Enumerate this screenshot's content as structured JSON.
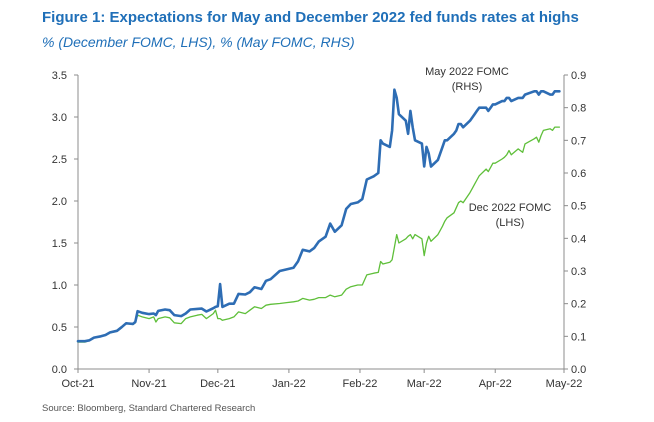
{
  "header": {
    "title": "Figure 1: Expectations for May and December 2022 fed funds rates at highs",
    "subtitle": "% (December FOMC, LHS), % (May FOMC, RHS)"
  },
  "footer": {
    "source": "Source: Bloomberg, Standard Chartered Research"
  },
  "chart_data": {
    "type": "line",
    "title": "Figure 1: Expectations for May and December 2022 fed funds rates at highs",
    "subtitle": "% (December FOMC, LHS), % (May FOMC, RHS)",
    "x_type": "date",
    "x_ticks": [
      "Oct-21",
      "Nov-21",
      "Dec-21",
      "Jan-22",
      "Feb-22",
      "Mar-22",
      "Apr-22",
      "May-22"
    ],
    "x_tick_dates": [
      "2021-10-01",
      "2021-11-01",
      "2021-12-01",
      "2022-01-01",
      "2022-02-01",
      "2022-03-01",
      "2022-04-01",
      "2022-05-01"
    ],
    "xlim": [
      "2021-10-01",
      "2022-05-01"
    ],
    "y_left": {
      "label": "",
      "ylim": [
        0,
        3.5
      ],
      "ticks": [
        "0.0",
        "0.5",
        "1.0",
        "1.5",
        "2.0",
        "2.5",
        "3.0",
        "3.5"
      ]
    },
    "y_right": {
      "label": "",
      "ylim": [
        0,
        0.9
      ],
      "ticks": [
        "0.0",
        "0.1",
        "0.2",
        "0.3",
        "0.4",
        "0.5",
        "0.6",
        "0.7",
        "0.8",
        "0.9"
      ]
    },
    "grid": false,
    "legend": "inline labels",
    "series": [
      {
        "name": "May 2022 FOMC (RHS)",
        "axis": "right",
        "color": "#2e6db4",
        "label_lines": [
          "May 2022 FOMC",
          "(RHS)"
        ],
        "points": [
          [
            "2021-10-01",
            0.085
          ],
          [
            "2021-10-04",
            0.085
          ],
          [
            "2021-10-06",
            0.088
          ],
          [
            "2021-10-08",
            0.096
          ],
          [
            "2021-10-11",
            0.1
          ],
          [
            "2021-10-13",
            0.104
          ],
          [
            "2021-10-15",
            0.112
          ],
          [
            "2021-10-18",
            0.117
          ],
          [
            "2021-10-20",
            0.128
          ],
          [
            "2021-10-22",
            0.14
          ],
          [
            "2021-10-25",
            0.138
          ],
          [
            "2021-10-26",
            0.144
          ],
          [
            "2021-10-27",
            0.177
          ],
          [
            "2021-10-29",
            0.172
          ],
          [
            "2021-11-01",
            0.168
          ],
          [
            "2021-11-03",
            0.17
          ],
          [
            "2021-11-04",
            0.165
          ],
          [
            "2021-11-05",
            0.178
          ],
          [
            "2021-11-08",
            0.182
          ],
          [
            "2021-11-10",
            0.18
          ],
          [
            "2021-11-12",
            0.165
          ],
          [
            "2021-11-15",
            0.162
          ],
          [
            "2021-11-17",
            0.17
          ],
          [
            "2021-11-19",
            0.182
          ],
          [
            "2021-11-22",
            0.184
          ],
          [
            "2021-11-24",
            0.185
          ],
          [
            "2021-11-26",
            0.176
          ],
          [
            "2021-11-29",
            0.186
          ],
          [
            "2021-11-30",
            0.19
          ],
          [
            "2021-12-01",
            0.192
          ],
          [
            "2021-12-02",
            0.26
          ],
          [
            "2021-12-03",
            0.19
          ],
          [
            "2021-12-06",
            0.2
          ],
          [
            "2021-12-08",
            0.2
          ],
          [
            "2021-12-10",
            0.23
          ],
          [
            "2021-12-13",
            0.228
          ],
          [
            "2021-12-15",
            0.235
          ],
          [
            "2021-12-17",
            0.25
          ],
          [
            "2021-12-20",
            0.245
          ],
          [
            "2021-12-22",
            0.27
          ],
          [
            "2021-12-24",
            0.275
          ],
          [
            "2021-12-28",
            0.3
          ],
          [
            "2021-12-31",
            0.305
          ],
          [
            "2022-01-03",
            0.31
          ],
          [
            "2022-01-05",
            0.33
          ],
          [
            "2022-01-07",
            0.365
          ],
          [
            "2022-01-10",
            0.36
          ],
          [
            "2022-01-12",
            0.37
          ],
          [
            "2022-01-14",
            0.39
          ],
          [
            "2022-01-17",
            0.405
          ],
          [
            "2022-01-19",
            0.445
          ],
          [
            "2022-01-21",
            0.42
          ],
          [
            "2022-01-24",
            0.44
          ],
          [
            "2022-01-26",
            0.49
          ],
          [
            "2022-01-28",
            0.505
          ],
          [
            "2022-01-31",
            0.51
          ],
          [
            "2022-02-02",
            0.52
          ],
          [
            "2022-02-04",
            0.58
          ],
          [
            "2022-02-07",
            0.59
          ],
          [
            "2022-02-09",
            0.6
          ],
          [
            "2022-02-10",
            0.7
          ],
          [
            "2022-02-11",
            0.69
          ],
          [
            "2022-02-14",
            0.68
          ],
          [
            "2022-02-15",
            0.73
          ],
          [
            "2022-02-16",
            0.855
          ],
          [
            "2022-02-17",
            0.83
          ],
          [
            "2022-02-18",
            0.78
          ],
          [
            "2022-02-21",
            0.76
          ],
          [
            "2022-02-22",
            0.72
          ],
          [
            "2022-02-23",
            0.79
          ],
          [
            "2022-02-24",
            0.74
          ],
          [
            "2022-02-25",
            0.7
          ],
          [
            "2022-02-28",
            0.69
          ],
          [
            "2022-03-01",
            0.62
          ],
          [
            "2022-03-02",
            0.68
          ],
          [
            "2022-03-03",
            0.66
          ],
          [
            "2022-03-04",
            0.62
          ],
          [
            "2022-03-07",
            0.64
          ],
          [
            "2022-03-08",
            0.66
          ],
          [
            "2022-03-09",
            0.68
          ],
          [
            "2022-03-10",
            0.7
          ],
          [
            "2022-03-11",
            0.7
          ],
          [
            "2022-03-14",
            0.72
          ],
          [
            "2022-03-15",
            0.73
          ],
          [
            "2022-03-16",
            0.75
          ],
          [
            "2022-03-17",
            0.75
          ],
          [
            "2022-03-18",
            0.74
          ],
          [
            "2022-03-21",
            0.76
          ],
          [
            "2022-03-22",
            0.77
          ],
          [
            "2022-03-23",
            0.78
          ],
          [
            "2022-03-24",
            0.79
          ],
          [
            "2022-03-25",
            0.8
          ],
          [
            "2022-03-28",
            0.8
          ],
          [
            "2022-03-29",
            0.79
          ],
          [
            "2022-03-30",
            0.8
          ],
          [
            "2022-03-31",
            0.81
          ],
          [
            "2022-04-01",
            0.81
          ],
          [
            "2022-04-04",
            0.82
          ],
          [
            "2022-04-05",
            0.82
          ],
          [
            "2022-04-06",
            0.83
          ],
          [
            "2022-04-07",
            0.83
          ],
          [
            "2022-04-08",
            0.82
          ],
          [
            "2022-04-11",
            0.83
          ],
          [
            "2022-04-12",
            0.83
          ],
          [
            "2022-04-13",
            0.83
          ],
          [
            "2022-04-14",
            0.84
          ],
          [
            "2022-04-18",
            0.85
          ],
          [
            "2022-04-19",
            0.85
          ],
          [
            "2022-04-20",
            0.84
          ],
          [
            "2022-04-21",
            0.85
          ],
          [
            "2022-04-22",
            0.85
          ],
          [
            "2022-04-25",
            0.84
          ],
          [
            "2022-04-26",
            0.84
          ],
          [
            "2022-04-27",
            0.85
          ],
          [
            "2022-04-28",
            0.85
          ],
          [
            "2022-04-29",
            0.85
          ]
        ]
      },
      {
        "name": "Dec 2022 FOMC (LHS)",
        "axis": "left",
        "color": "#5fbf3a",
        "label_lines": [
          "Dec 2022 FOMC",
          "(LHS)"
        ],
        "points": [
          [
            "2021-10-01",
            0.32
          ],
          [
            "2021-10-04",
            0.32
          ],
          [
            "2021-10-06",
            0.34
          ],
          [
            "2021-10-08",
            0.37
          ],
          [
            "2021-10-11",
            0.39
          ],
          [
            "2021-10-13",
            0.4
          ],
          [
            "2021-10-15",
            0.43
          ],
          [
            "2021-10-18",
            0.45
          ],
          [
            "2021-10-20",
            0.49
          ],
          [
            "2021-10-22",
            0.54
          ],
          [
            "2021-10-25",
            0.53
          ],
          [
            "2021-10-26",
            0.55
          ],
          [
            "2021-10-27",
            0.64
          ],
          [
            "2021-10-29",
            0.62
          ],
          [
            "2021-11-01",
            0.6
          ],
          [
            "2021-11-03",
            0.62
          ],
          [
            "2021-11-04",
            0.56
          ],
          [
            "2021-11-05",
            0.6
          ],
          [
            "2021-11-08",
            0.62
          ],
          [
            "2021-11-10",
            0.61
          ],
          [
            "2021-11-12",
            0.55
          ],
          [
            "2021-11-15",
            0.54
          ],
          [
            "2021-11-17",
            0.6
          ],
          [
            "2021-11-19",
            0.62
          ],
          [
            "2021-11-22",
            0.64
          ],
          [
            "2021-11-24",
            0.65
          ],
          [
            "2021-11-26",
            0.6
          ],
          [
            "2021-11-29",
            0.66
          ],
          [
            "2021-11-30",
            0.7
          ],
          [
            "2021-12-01",
            0.6
          ],
          [
            "2021-12-02",
            0.6
          ],
          [
            "2021-12-03",
            0.58
          ],
          [
            "2021-12-06",
            0.6
          ],
          [
            "2021-12-08",
            0.62
          ],
          [
            "2021-12-10",
            0.68
          ],
          [
            "2021-12-13",
            0.66
          ],
          [
            "2021-12-15",
            0.7
          ],
          [
            "2021-12-17",
            0.74
          ],
          [
            "2021-12-20",
            0.72
          ],
          [
            "2021-12-22",
            0.76
          ],
          [
            "2021-12-24",
            0.77
          ],
          [
            "2021-12-28",
            0.78
          ],
          [
            "2021-12-31",
            0.79
          ],
          [
            "2022-01-03",
            0.8
          ],
          [
            "2022-01-05",
            0.81
          ],
          [
            "2022-01-07",
            0.84
          ],
          [
            "2022-01-10",
            0.82
          ],
          [
            "2022-01-12",
            0.83
          ],
          [
            "2022-01-14",
            0.85
          ],
          [
            "2022-01-17",
            0.85
          ],
          [
            "2022-01-19",
            0.88
          ],
          [
            "2022-01-21",
            0.86
          ],
          [
            "2022-01-24",
            0.88
          ],
          [
            "2022-01-26",
            0.95
          ],
          [
            "2022-01-28",
            0.98
          ],
          [
            "2022-01-31",
            1.0
          ],
          [
            "2022-02-02",
            1.0
          ],
          [
            "2022-02-04",
            1.12
          ],
          [
            "2022-02-07",
            1.14
          ],
          [
            "2022-02-09",
            1.15
          ],
          [
            "2022-02-10",
            1.28
          ],
          [
            "2022-02-11",
            1.25
          ],
          [
            "2022-02-14",
            1.27
          ],
          [
            "2022-02-15",
            1.3
          ],
          [
            "2022-02-16",
            1.45
          ],
          [
            "2022-02-17",
            1.6
          ],
          [
            "2022-02-18",
            1.5
          ],
          [
            "2022-02-21",
            1.55
          ],
          [
            "2022-02-22",
            1.58
          ],
          [
            "2022-02-23",
            1.6
          ],
          [
            "2022-02-24",
            1.55
          ],
          [
            "2022-02-25",
            1.6
          ],
          [
            "2022-02-28",
            1.55
          ],
          [
            "2022-03-01",
            1.35
          ],
          [
            "2022-03-02",
            1.5
          ],
          [
            "2022-03-03",
            1.58
          ],
          [
            "2022-03-04",
            1.52
          ],
          [
            "2022-03-07",
            1.6
          ],
          [
            "2022-03-08",
            1.65
          ],
          [
            "2022-03-09",
            1.7
          ],
          [
            "2022-03-10",
            1.76
          ],
          [
            "2022-03-11",
            1.8
          ],
          [
            "2022-03-14",
            1.86
          ],
          [
            "2022-03-15",
            1.92
          ],
          [
            "2022-03-16",
            1.98
          ],
          [
            "2022-03-17",
            2.0
          ],
          [
            "2022-03-18",
            1.98
          ],
          [
            "2022-03-21",
            2.1
          ],
          [
            "2022-03-22",
            2.15
          ],
          [
            "2022-03-23",
            2.2
          ],
          [
            "2022-03-24",
            2.25
          ],
          [
            "2022-03-25",
            2.3
          ],
          [
            "2022-03-28",
            2.38
          ],
          [
            "2022-03-29",
            2.35
          ],
          [
            "2022-03-30",
            2.4
          ],
          [
            "2022-03-31",
            2.45
          ],
          [
            "2022-04-01",
            2.45
          ],
          [
            "2022-04-04",
            2.5
          ],
          [
            "2022-04-05",
            2.52
          ],
          [
            "2022-04-06",
            2.55
          ],
          [
            "2022-04-07",
            2.6
          ],
          [
            "2022-04-08",
            2.55
          ],
          [
            "2022-04-11",
            2.62
          ],
          [
            "2022-04-12",
            2.6
          ],
          [
            "2022-04-13",
            2.58
          ],
          [
            "2022-04-14",
            2.68
          ],
          [
            "2022-04-18",
            2.74
          ],
          [
            "2022-04-19",
            2.76
          ],
          [
            "2022-04-20",
            2.7
          ],
          [
            "2022-04-21",
            2.78
          ],
          [
            "2022-04-22",
            2.84
          ],
          [
            "2022-04-25",
            2.86
          ],
          [
            "2022-04-26",
            2.84
          ],
          [
            "2022-04-27",
            2.88
          ],
          [
            "2022-04-28",
            2.88
          ],
          [
            "2022-04-29",
            2.88
          ]
        ]
      }
    ]
  }
}
